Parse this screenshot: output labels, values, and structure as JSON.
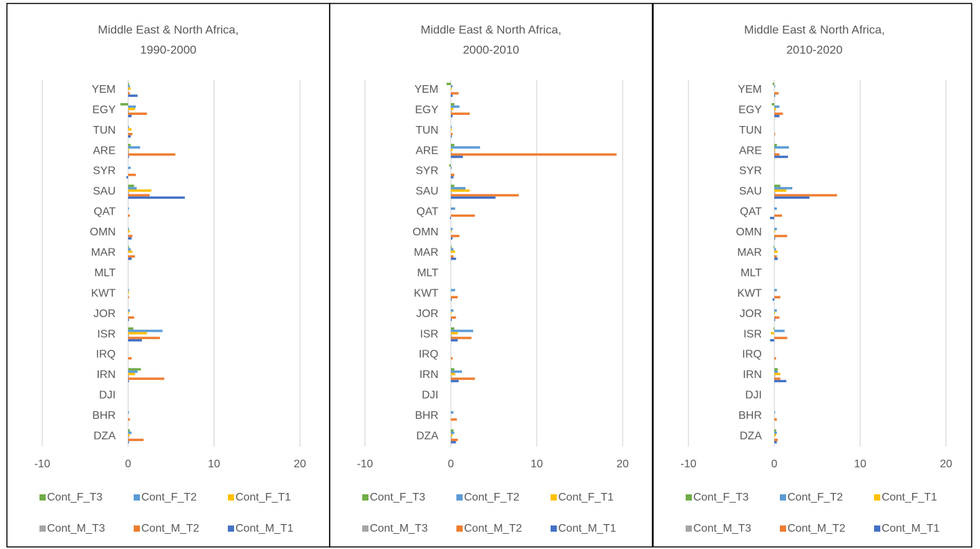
{
  "chart_data": [
    {
      "type": "bar",
      "orientation": "horizontal",
      "title_lines": [
        "Middle East & North Africa,",
        "1990-2000"
      ],
      "categories": [
        "YEM",
        "EGY",
        "TUN",
        "ARE",
        "SYR",
        "SAU",
        "QAT",
        "OMN",
        "MAR",
        "MLT",
        "KWT",
        "JOR",
        "ISR",
        "IRQ",
        "IRN",
        "DJI",
        "BHR",
        "DZA"
      ],
      "xlim": [
        -10,
        20
      ],
      "xticks": [
        -10,
        0,
        10,
        20
      ],
      "grid": true,
      "legend": "bottom",
      "series": [
        {
          "name": "Cont_F_T3",
          "color": "#70ad47",
          "values": [
            0.1,
            -0.9,
            0,
            0.3,
            0,
            0.7,
            0,
            0,
            0.1,
            0,
            0,
            0,
            0.6,
            0,
            1.5,
            0,
            0,
            0.2
          ]
        },
        {
          "name": "Cont_F_T2",
          "color": "#5b9bd5",
          "values": [
            0.2,
            0.9,
            0.1,
            1.4,
            0.3,
            1.0,
            0.1,
            0.1,
            0.3,
            0,
            0.1,
            0.2,
            4.0,
            0,
            1.1,
            0,
            0.1,
            0.4
          ]
        },
        {
          "name": "Cont_F_T1",
          "color": "#ffc000",
          "values": [
            0.3,
            0.8,
            0.4,
            0.1,
            0,
            2.7,
            0,
            0.2,
            0.5,
            0,
            0.1,
            0.1,
            2.2,
            0,
            0.8,
            0,
            0,
            0.2
          ]
        },
        {
          "name": "Cont_M_T3",
          "color": "#a5a5a5",
          "values": [
            0.05,
            0.1,
            0,
            0.1,
            0,
            0.1,
            0,
            0,
            0,
            0,
            0,
            0,
            0.1,
            0,
            0.1,
            0,
            0,
            0.1
          ]
        },
        {
          "name": "Cont_M_T2",
          "color": "#ed7d31",
          "values": [
            0.2,
            2.2,
            0.5,
            5.5,
            0.9,
            2.5,
            0.2,
            0.5,
            0.8,
            0,
            0.1,
            0.7,
            3.7,
            0.4,
            4.2,
            0,
            0.2,
            1.8
          ]
        },
        {
          "name": "Cont_M_T1",
          "color": "#4472c4",
          "values": [
            1.1,
            0.4,
            0.3,
            0.1,
            -0.2,
            6.6,
            0,
            0.4,
            0.4,
            0,
            0,
            0.1,
            1.6,
            0,
            0.1,
            0,
            0,
            0.1
          ]
        }
      ]
    },
    {
      "type": "bar",
      "orientation": "horizontal",
      "title_lines": [
        "Middle East & North Africa,",
        "2000-2010"
      ],
      "categories": [
        "YEM",
        "EGY",
        "TUN",
        "ARE",
        "SYR",
        "SAU",
        "QAT",
        "OMN",
        "MAR",
        "MLT",
        "KWT",
        "JOR",
        "ISR",
        "IRQ",
        "IRN",
        "DJI",
        "BHR",
        "DZA"
      ],
      "xlim": [
        -10,
        20
      ],
      "xticks": [
        -10,
        0,
        10,
        20
      ],
      "grid": true,
      "legend": "bottom",
      "series": [
        {
          "name": "Cont_F_T3",
          "color": "#70ad47",
          "values": [
            -0.5,
            0.4,
            0,
            0.4,
            -0.2,
            0.4,
            0,
            0,
            0.1,
            0,
            0,
            0,
            0.4,
            0,
            0.4,
            0,
            0,
            0.3
          ]
        },
        {
          "name": "Cont_F_T2",
          "color": "#5b9bd5",
          "values": [
            0.2,
            1.0,
            0.1,
            3.4,
            0.1,
            1.7,
            0.5,
            0.2,
            0.3,
            0,
            0.5,
            0.3,
            2.6,
            0,
            1.3,
            0,
            0.3,
            0.4
          ]
        },
        {
          "name": "Cont_F_T1",
          "color": "#ffc000",
          "values": [
            0.1,
            0.3,
            0.1,
            0.2,
            0,
            2.2,
            0,
            0.1,
            0.5,
            0,
            0,
            0.1,
            0.8,
            0,
            0.5,
            0,
            0,
            0.2
          ]
        },
        {
          "name": "Cont_M_T3",
          "color": "#a5a5a5",
          "values": [
            0,
            0.1,
            0,
            0.1,
            0,
            0.1,
            0,
            0,
            0,
            0,
            0,
            0,
            0.1,
            0,
            0.1,
            0,
            0,
            0.1
          ]
        },
        {
          "name": "Cont_M_T2",
          "color": "#ed7d31",
          "values": [
            0.9,
            2.2,
            0.2,
            19.3,
            0.4,
            7.9,
            2.8,
            1.0,
            0.3,
            0,
            0.8,
            0.6,
            2.4,
            0.2,
            2.8,
            0,
            0.7,
            0.8
          ]
        },
        {
          "name": "Cont_M_T1",
          "color": "#4472c4",
          "values": [
            0.2,
            0.2,
            0.1,
            1.4,
            0.3,
            5.2,
            -0.1,
            0.2,
            0.6,
            0,
            0.1,
            0.1,
            0.8,
            0,
            0.9,
            0,
            0,
            0.6
          ]
        }
      ]
    },
    {
      "type": "bar",
      "orientation": "horizontal",
      "title_lines": [
        "Middle East & North Africa,",
        "2010-2020"
      ],
      "categories": [
        "YEM",
        "EGY",
        "TUN",
        "ARE",
        "SYR",
        "SAU",
        "QAT",
        "OMN",
        "MAR",
        "MLT",
        "KWT",
        "JOR",
        "ISR",
        "IRQ",
        "IRN",
        "DJI",
        "BHR",
        "DZA"
      ],
      "xlim": [
        -10,
        20
      ],
      "xticks": [
        -10,
        0,
        10,
        20
      ],
      "grid": true,
      "legend": "bottom",
      "series": [
        {
          "name": "Cont_F_T3",
          "color": "#70ad47",
          "values": [
            -0.2,
            -0.3,
            0,
            0.3,
            0,
            0.7,
            0,
            0,
            -0.1,
            0,
            0,
            0,
            -0.1,
            0,
            0.4,
            0,
            0,
            0.2
          ]
        },
        {
          "name": "Cont_F_T2",
          "color": "#5b9bd5",
          "values": [
            0.1,
            0.6,
            0,
            1.7,
            0,
            2.1,
            0.3,
            0.3,
            0.2,
            0,
            0.3,
            0.3,
            1.2,
            0,
            0.4,
            0,
            0.1,
            0.3
          ]
        },
        {
          "name": "Cont_F_T1",
          "color": "#ffc000",
          "values": [
            0,
            0.2,
            0,
            0.1,
            0,
            1.4,
            0,
            0.1,
            0.4,
            0,
            0,
            0.1,
            -0.4,
            0,
            0.7,
            0,
            0,
            0.2
          ]
        },
        {
          "name": "Cont_M_T3",
          "color": "#a5a5a5",
          "values": [
            0,
            0.1,
            0,
            0.1,
            0,
            0.1,
            0,
            0,
            0,
            0,
            0,
            0,
            0,
            0,
            0.1,
            0,
            0,
            0
          ]
        },
        {
          "name": "Cont_M_T2",
          "color": "#ed7d31",
          "values": [
            0.5,
            1.0,
            0.1,
            0.6,
            0,
            7.3,
            0.9,
            1.5,
            0.3,
            0,
            0.7,
            0.6,
            1.5,
            0.2,
            0.7,
            0,
            0.3,
            0.4
          ]
        },
        {
          "name": "Cont_M_T1",
          "color": "#4472c4",
          "values": [
            0.1,
            0.6,
            0,
            1.6,
            0,
            4.1,
            -0.5,
            0.1,
            0.4,
            0,
            -0.2,
            0.1,
            -0.5,
            0,
            1.4,
            0,
            0,
            0.3
          ]
        }
      ]
    }
  ]
}
